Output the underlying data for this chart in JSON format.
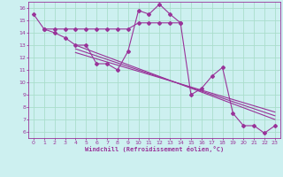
{
  "bg_color": "#cdf0f0",
  "grid_color": "#aaddcc",
  "line_color": "#993399",
  "marker_color": "#993399",
  "xlabel": "Windchill (Refroidissement éolien,°C)",
  "xlim": [
    -0.5,
    23.5
  ],
  "ylim": [
    5.5,
    16.5
  ],
  "xticks": [
    0,
    1,
    2,
    3,
    4,
    5,
    6,
    7,
    8,
    9,
    10,
    11,
    12,
    13,
    14,
    15,
    16,
    17,
    18,
    19,
    20,
    21,
    22,
    23
  ],
  "yticks": [
    6,
    7,
    8,
    9,
    10,
    11,
    12,
    13,
    14,
    15,
    16
  ],
  "main_series_x": [
    0,
    1,
    2,
    3,
    4,
    5,
    6,
    7,
    8,
    9,
    10,
    11,
    12,
    13,
    14,
    15,
    16,
    17,
    18,
    19,
    20,
    21,
    22,
    23
  ],
  "main_series_y": [
    15.5,
    14.3,
    14.0,
    13.6,
    13.0,
    13.0,
    11.5,
    11.5,
    11.0,
    12.5,
    15.8,
    15.5,
    16.3,
    15.5,
    14.8,
    9.0,
    9.5,
    10.5,
    11.2,
    7.5,
    6.5,
    6.5,
    5.9,
    6.5
  ],
  "flat_series_x": [
    1,
    2,
    3,
    4,
    5,
    6,
    7,
    8,
    9,
    10,
    11,
    12,
    13,
    14
  ],
  "flat_series_y": [
    14.3,
    14.3,
    14.3,
    14.3,
    14.3,
    14.3,
    14.3,
    14.3,
    14.3,
    14.8,
    14.8,
    14.8,
    14.8,
    14.8
  ],
  "reg_lines": [
    {
      "x": [
        4,
        23
      ],
      "y": [
        13.0,
        7.0
      ]
    },
    {
      "x": [
        4,
        23
      ],
      "y": [
        12.7,
        7.3
      ]
    },
    {
      "x": [
        4,
        23
      ],
      "y": [
        12.4,
        7.6
      ]
    }
  ]
}
